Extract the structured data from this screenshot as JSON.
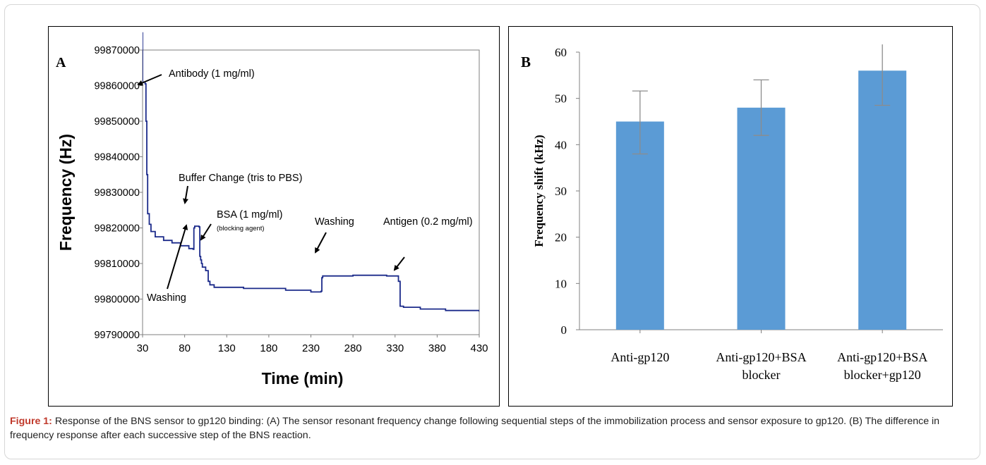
{
  "chart_data": [
    {
      "type": "line",
      "panel_label": "A",
      "xlabel": "Time (min)",
      "ylabel": "Frequency (Hz)",
      "xlim": [
        30,
        430
      ],
      "ylim": [
        99790000,
        99870000
      ],
      "xticks": [
        "30",
        "80",
        "130",
        "180",
        "230",
        "280",
        "330",
        "380",
        "430"
      ],
      "yticks": [
        "99790000",
        "99800000",
        "99810000",
        "99820000",
        "99830000",
        "99840000",
        "99850000",
        "99860000",
        "99870000"
      ],
      "grid": false,
      "series": [
        {
          "color": "#1b2a8a",
          "x": [
            30,
            30,
            33,
            34,
            35,
            36,
            38,
            40,
            45,
            55,
            65,
            75,
            85,
            90,
            91,
            92,
            96,
            97,
            98,
            99,
            100,
            101,
            104,
            105,
            108,
            110,
            115,
            150,
            200,
            230,
            242,
            243,
            244,
            250,
            280,
            320,
            333,
            334,
            336,
            340,
            360,
            390,
            430
          ],
          "y": [
            99875000,
            99861000,
            99860500,
            99850000,
            99835000,
            99824000,
            99821000,
            99819000,
            99817500,
            99816500,
            99815800,
            99815000,
            99814200,
            99814000,
            99820000,
            99820500,
            99820500,
            99820300,
            99812000,
            99811000,
            99810000,
            99809000,
            99809000,
            99808000,
            99805000,
            99804000,
            99803300,
            99803000,
            99802500,
            99802000,
            99802200,
            99806000,
            99806500,
            99806500,
            99806700,
            99806500,
            99806500,
            99805000,
            99798000,
            99797700,
            99797200,
            99796800,
            99796500
          ]
        }
      ],
      "annotations": [
        {
          "text": "Antibody (1 mg/ml)"
        },
        {
          "text": "Buffer Change (tris to PBS)"
        },
        {
          "text": "BSA (1 mg/ml)"
        },
        {
          "text": "(blocking agent)"
        },
        {
          "text": "Washing"
        },
        {
          "text": "Washing"
        },
        {
          "text": "Antigen (0.2 mg/ml)"
        }
      ]
    },
    {
      "type": "bar",
      "panel_label": "B",
      "xlabel": "",
      "ylabel": "Frequency shift (kHz)",
      "ylim": [
        0,
        60
      ],
      "yticks": [
        "0",
        "10",
        "20",
        "30",
        "40",
        "50",
        "60"
      ],
      "categories": [
        [
          "Anti-gp120"
        ],
        [
          "Anti-gp120+BSA",
          "blocker"
        ],
        [
          "Anti-gp120+BSA",
          "blocker+gp120"
        ]
      ],
      "values": [
        45,
        48,
        56
      ],
      "errors": [
        [
          38,
          51.6
        ],
        [
          42,
          54
        ],
        [
          48.5,
          64
        ]
      ],
      "bar_color": "#5b9bd5",
      "error_color": "#8c8c8c",
      "grid": false
    }
  ],
  "caption": {
    "label": "Figure 1:",
    "text": "Response of the BNS sensor to gp120 binding: (A) The sensor resonant frequency change following sequential steps of the immobilization process and sensor exposure to gp120. (B) The difference in frequency response after each successive step of the BNS reaction."
  }
}
